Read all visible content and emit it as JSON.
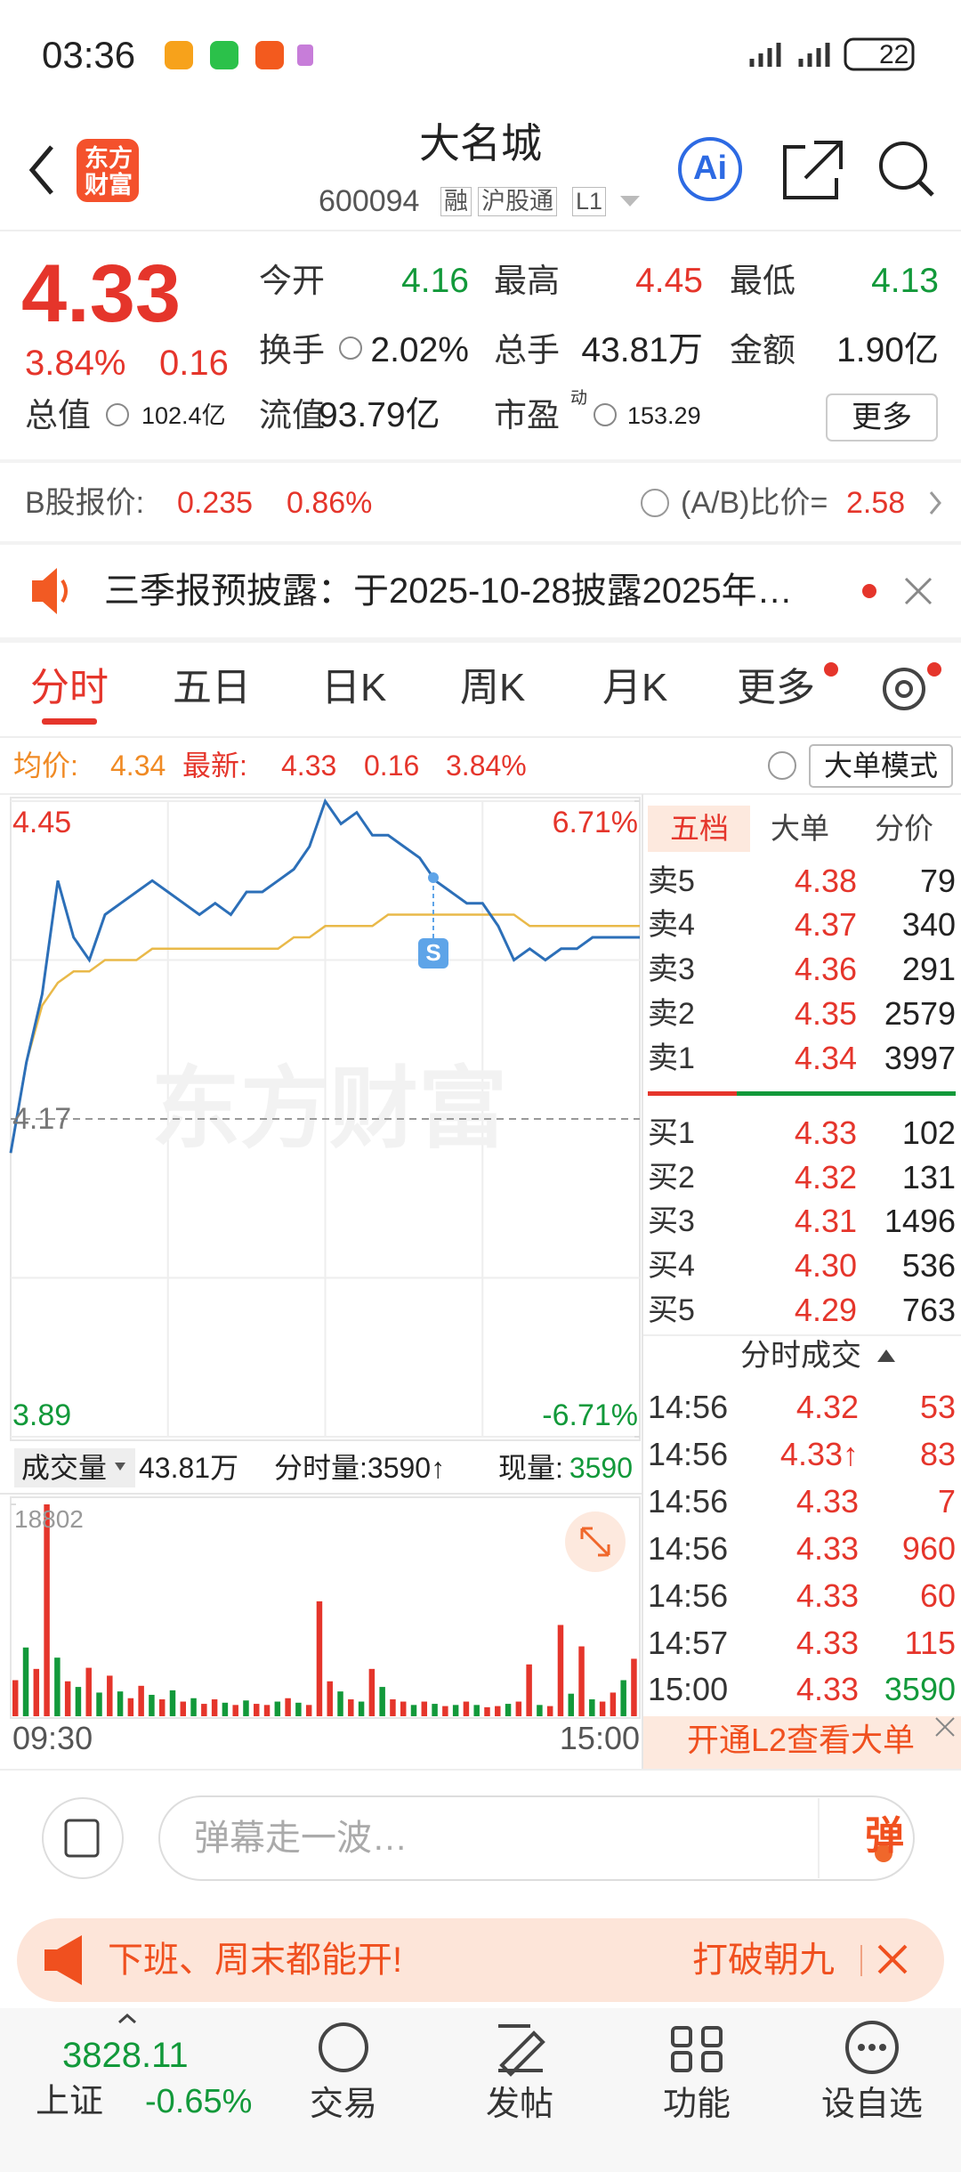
{
  "status_bar": {
    "time": "03:36",
    "battery": "22"
  },
  "header": {
    "logo": [
      "东方",
      "财富"
    ],
    "title": "大名城",
    "code": "600094",
    "tags": [
      "融",
      "沪股通",
      "L1"
    ],
    "ai": "Ai"
  },
  "quote": {
    "price": "4.33",
    "change_pct": "3.84%",
    "change": "0.16",
    "fields": [
      {
        "label": "今开",
        "value": "4.16"
      },
      {
        "label": "最高",
        "value": "4.45"
      },
      {
        "label": "最低",
        "value": "4.13"
      },
      {
        "label": "换手",
        "value": "2.02%"
      },
      {
        "label": "总手",
        "value": "43.81万"
      },
      {
        "label": "金额",
        "value": "1.90亿"
      },
      {
        "label": "总值",
        "value": "102.4亿"
      },
      {
        "label": "流值",
        "value": "93.79亿"
      },
      {
        "label": "市盈",
        "value": "153.29",
        "superscript": "动"
      }
    ],
    "more": "更多"
  },
  "b_share": {
    "label": "B股报价:",
    "price": "0.235",
    "change_pct": "0.86%",
    "ratio_label": "(A/B)比价=",
    "ratio": "2.58"
  },
  "notice": {
    "text": "三季报预披露：于2025-10-28披露2025年…"
  },
  "tabs": [
    "分时",
    "五日",
    "日K",
    "周K",
    "月K",
    "更多"
  ],
  "chart_info": {
    "avg_label": "均价:",
    "avg": "4.34",
    "last_label": "最新:",
    "last": "4.33",
    "change": "0.16",
    "change_pct": "3.84%",
    "mode": "大单模式"
  },
  "intraday": {
    "type": "line",
    "watermark": "东方财富",
    "marker": "S",
    "ylim": [
      3.89,
      4.45
    ],
    "yticks": [
      3.89,
      4.17,
      4.45
    ],
    "y2lim": [
      -6.71,
      6.71
    ],
    "y2ticks": [
      {
        "value": -6.71,
        "label": "-6.71%"
      },
      {
        "value": 6.71,
        "label": "6.71%"
      }
    ],
    "price_color": "#2c6fb8",
    "avg_color": "#e9b949",
    "price": [
      4.14,
      4.22,
      4.28,
      4.38,
      4.33,
      4.31,
      4.35,
      4.36,
      4.37,
      4.38,
      4.37,
      4.36,
      4.35,
      4.36,
      4.35,
      4.37,
      4.37,
      4.38,
      4.39,
      4.41,
      4.45,
      4.43,
      4.44,
      4.42,
      4.42,
      4.41,
      4.4,
      4.38,
      4.37,
      4.36,
      4.36,
      4.34,
      4.31,
      4.32,
      4.31,
      4.32,
      4.32,
      4.33,
      4.33,
      4.33,
      4.33
    ],
    "avg": [
      4.14,
      4.22,
      4.27,
      4.29,
      4.3,
      4.3,
      4.31,
      4.31,
      4.31,
      4.32,
      4.32,
      4.32,
      4.32,
      4.32,
      4.32,
      4.32,
      4.32,
      4.32,
      4.33,
      4.33,
      4.34,
      4.34,
      4.34,
      4.34,
      4.35,
      4.35,
      4.35,
      4.35,
      4.35,
      4.35,
      4.35,
      4.35,
      4.35,
      4.34,
      4.34,
      4.34,
      4.34,
      4.34,
      4.34,
      4.34,
      4.34
    ]
  },
  "volume": {
    "type": "bar",
    "label": "成交量",
    "total": "43.81万",
    "minute_label": "分时量:3590↑",
    "current_label": "现量:",
    "current": "3590",
    "ylim": [
      0,
      18802
    ],
    "yticks": [
      18802
    ],
    "values": [
      3200,
      6100,
      4200,
      18802,
      5200,
      3100,
      2600,
      4300,
      2100,
      3600,
      2200,
      1600,
      2700,
      1900,
      1500,
      2300,
      1300,
      1600,
      1100,
      1500,
      1200,
      1000,
      1400,
      1100,
      1000,
      1300,
      1600,
      1200,
      1000,
      10200,
      3100,
      2200,
      1500,
      1300,
      4200,
      2600,
      1500,
      1300,
      1000,
      1300,
      1100,
      900,
      1000,
      1300,
      1000,
      800,
      900,
      1100,
      1300,
      4600,
      1000,
      900,
      8100,
      2000,
      6200,
      1500,
      1300,
      2100,
      3200,
      5100
    ],
    "up": [
      true,
      false,
      true,
      true,
      false,
      true,
      false,
      true,
      false,
      true,
      false,
      true,
      true,
      false,
      true,
      false,
      true,
      false,
      true,
      true,
      false,
      true,
      false,
      true,
      true,
      false,
      true,
      false,
      true,
      true,
      true,
      false,
      true,
      false,
      true,
      false,
      true,
      true,
      false,
      true,
      false,
      true,
      false,
      true,
      false,
      true,
      true,
      false,
      true,
      true,
      false,
      true,
      true,
      false,
      true,
      false,
      true,
      true,
      false,
      true
    ],
    "up_color": "#e5352b",
    "down_color": "#12993a",
    "times": [
      "09:30",
      "15:00"
    ]
  },
  "order_book": {
    "tabs": [
      "五档",
      "大单",
      "分价"
    ],
    "asks": [
      {
        "label": "卖5",
        "price": "4.38",
        "volume": "79"
      },
      {
        "label": "卖4",
        "price": "4.37",
        "volume": "340"
      },
      {
        "label": "卖3",
        "price": "4.36",
        "volume": "291"
      },
      {
        "label": "卖2",
        "price": "4.35",
        "volume": "2579"
      },
      {
        "label": "卖1",
        "price": "4.34",
        "volume": "3997"
      }
    ],
    "bids": [
      {
        "label": "买1",
        "price": "4.33",
        "volume": "102"
      },
      {
        "label": "买2",
        "price": "4.32",
        "volume": "131"
      },
      {
        "label": "买3",
        "price": "4.31",
        "volume": "1496"
      },
      {
        "label": "买4",
        "price": "4.30",
        "volume": "536"
      },
      {
        "label": "买5",
        "price": "4.29",
        "volume": "763"
      }
    ]
  },
  "trades": {
    "title": "分时成交",
    "rows": [
      {
        "time": "14:56",
        "price": "4.32",
        "volume": "53",
        "up": true
      },
      {
        "time": "14:56",
        "price": "4.33↑",
        "volume": "83",
        "up": true
      },
      {
        "time": "14:56",
        "price": "4.33",
        "volume": "7",
        "up": true
      },
      {
        "time": "14:56",
        "price": "4.33",
        "volume": "960",
        "up": true
      },
      {
        "time": "14:56",
        "price": "4.33",
        "volume": "60",
        "up": true
      },
      {
        "time": "14:57",
        "price": "4.33",
        "volume": "115",
        "up": true
      },
      {
        "time": "15:00",
        "price": "4.33",
        "volume": "3590",
        "up": false
      }
    ],
    "l2": "开通L2查看大单"
  },
  "comment": {
    "placeholder": "弹幕走一波…",
    "button": "弹"
  },
  "ad": {
    "text": "下班、周末都能开!",
    "more": "打破朝九"
  },
  "nav": {
    "index_value": "3828.11",
    "index_name": "上证",
    "index_change": "-0.65%",
    "items": [
      "交易",
      "发帖",
      "功能",
      "设自选"
    ]
  }
}
